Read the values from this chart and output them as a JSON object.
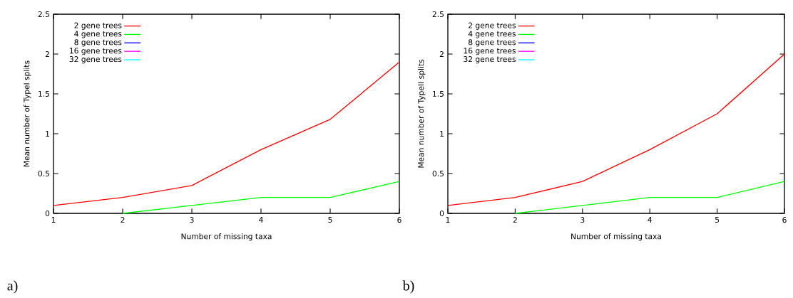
{
  "chart_data": [
    {
      "type": "line",
      "xlabel": "Number of missing taxa",
      "ylabel": "Mean number of TypeI splits",
      "x": [
        1,
        2,
        3,
        4,
        5,
        6
      ],
      "series": [
        {
          "name": "2 gene trees",
          "color": "#ff0000",
          "values": [
            0.1,
            0.2,
            0.35,
            0.8,
            1.18,
            1.9
          ]
        },
        {
          "name": "4 gene trees",
          "color": "#00ff00",
          "values": [
            null,
            0,
            0.1,
            0.2,
            0.2,
            0.4
          ]
        },
        {
          "name": "8 gene trees",
          "color": "#0000ff",
          "values": [
            null,
            null,
            null,
            null,
            null,
            null
          ]
        },
        {
          "name": "16 gene trees",
          "color": "#ff00ff",
          "values": [
            null,
            null,
            null,
            null,
            null,
            null
          ]
        },
        {
          "name": "32 gene trees",
          "color": "#00ffff",
          "values": [
            null,
            null,
            null,
            null,
            null,
            null
          ]
        }
      ],
      "xlim": [
        1,
        6
      ],
      "ylim": [
        0,
        2.5
      ],
      "xticks": [
        1,
        2,
        3,
        4,
        5,
        6
      ],
      "yticks": [
        0,
        0.5,
        1,
        1.5,
        2,
        2.5
      ],
      "legend": "top left",
      "line_style": "solid",
      "annotations": [
        "a)"
      ]
    },
    {
      "type": "line",
      "xlabel": "Number of missing taxa",
      "ylabel": "Mean number of TypeII splits",
      "x": [
        1,
        2,
        3,
        4,
        5,
        6
      ],
      "series": [
        {
          "name": "2 gene trees",
          "color": "#ff0000",
          "values": [
            0.1,
            0.2,
            0.4,
            0.8,
            1.25,
            2.0
          ]
        },
        {
          "name": "4 gene trees",
          "color": "#00ff00",
          "values": [
            null,
            0,
            0.1,
            0.2,
            0.2,
            0.4
          ]
        },
        {
          "name": "8 gene trees",
          "color": "#0000ff",
          "values": [
            null,
            null,
            null,
            null,
            null,
            null
          ]
        },
        {
          "name": "16 gene trees",
          "color": "#ff00ff",
          "values": [
            null,
            null,
            null,
            null,
            null,
            null
          ]
        },
        {
          "name": "32 gene trees",
          "color": "#00ffff",
          "values": [
            null,
            null,
            null,
            null,
            null,
            null
          ]
        }
      ],
      "xlim": [
        1,
        6
      ],
      "ylim": [
        0,
        2.5
      ],
      "xticks": [
        1,
        2,
        3,
        4,
        5,
        6
      ],
      "yticks": [
        0,
        0.5,
        1,
        1.5,
        2,
        2.5
      ],
      "legend": "top left",
      "line_style": "solid",
      "annotations": [
        "b)"
      ]
    }
  ]
}
